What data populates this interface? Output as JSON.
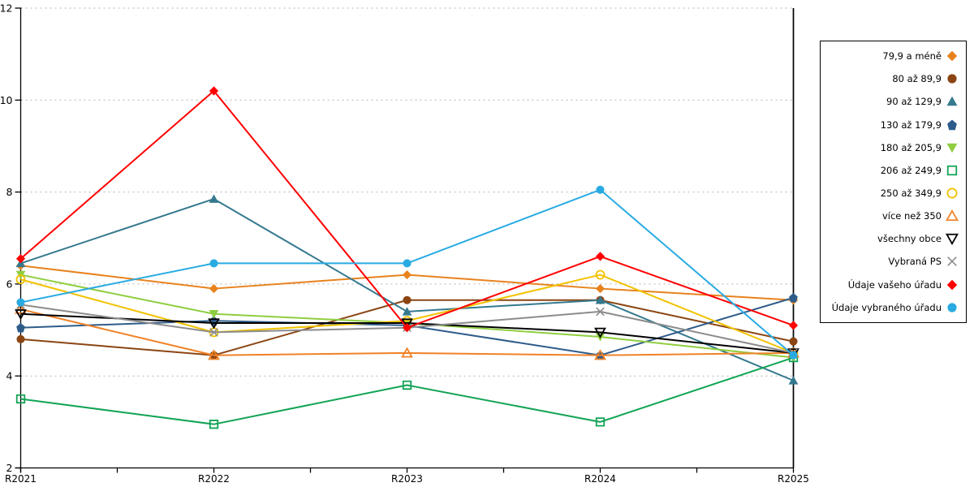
{
  "chart_data": {
    "type": "line",
    "title": "",
    "xlabel": "",
    "ylabel": "",
    "categories": [
      "R2021",
      "R2022",
      "R2023",
      "R2024",
      "R2025"
    ],
    "ylim": [
      2,
      12
    ],
    "yticks": [
      2,
      4,
      6,
      8,
      10,
      12
    ],
    "grid": "horizontal dotted gridlines",
    "legend_position": "right",
    "series": [
      {
        "name": "79,9 a méně",
        "marker": "diamond",
        "style": "filled",
        "color": "#E8821E",
        "values": [
          6.4,
          5.9,
          6.2,
          5.9,
          5.65
        ]
      },
      {
        "name": "80 až 89,9",
        "marker": "circle",
        "style": "filled",
        "color": "#8B4513",
        "values": [
          4.8,
          4.45,
          5.65,
          5.65,
          4.75
        ]
      },
      {
        "name": "90 až 129,9",
        "marker": "triangle-up",
        "style": "filled",
        "color": "#35798F",
        "values": [
          6.45,
          7.85,
          5.4,
          5.65,
          3.9
        ]
      },
      {
        "name": "130 až 179,9",
        "marker": "pentagon",
        "style": "filled",
        "color": "#2E5C8A",
        "values": [
          5.05,
          5.2,
          5.1,
          4.45,
          5.7
        ]
      },
      {
        "name": "180 až 205,9",
        "marker": "triangle-down",
        "style": "filled",
        "color": "#8FCE3F",
        "values": [
          6.2,
          5.35,
          5.15,
          4.85,
          4.4
        ]
      },
      {
        "name": "206 až 249,9",
        "marker": "square",
        "style": "open",
        "color": "#12A455",
        "values": [
          3.5,
          2.95,
          3.8,
          3.0,
          4.4
        ]
      },
      {
        "name": "250 až 349,9",
        "marker": "circle",
        "style": "open",
        "color": "#F2C200",
        "values": [
          6.1,
          4.95,
          5.2,
          6.2,
          4.5
        ]
      },
      {
        "name": "více než 350",
        "marker": "triangle-up",
        "style": "open",
        "color": "#F08228",
        "values": [
          5.45,
          4.45,
          4.5,
          4.45,
          4.5
        ]
      },
      {
        "name": "všechny obce",
        "marker": "triangle-down",
        "style": "open",
        "color": "#000000",
        "values": [
          5.35,
          5.15,
          5.15,
          4.95,
          4.5
        ]
      },
      {
        "name": "Vybraná PS",
        "marker": "x",
        "style": "open",
        "color": "#8C8C8C",
        "values": [
          5.55,
          4.95,
          5.05,
          5.4,
          4.5
        ]
      },
      {
        "name": "Údaje vašeho úřadu",
        "marker": "diamond",
        "style": "filled",
        "color": "#FF0000",
        "values": [
          6.55,
          10.2,
          5.05,
          6.6,
          5.1
        ]
      },
      {
        "name": "Údaje vybraného úřadu",
        "marker": "circle",
        "style": "filled",
        "color": "#29ABE2",
        "values": [
          5.6,
          6.45,
          6.45,
          8.05,
          4.45
        ]
      }
    ]
  },
  "axis_labels": {
    "y_tick_labels": [
      "2",
      "4",
      "6",
      "8",
      "10",
      "12"
    ],
    "x_tick_labels": [
      "R2021",
      "R2022",
      "R2023",
      "R2024",
      "R2025"
    ]
  }
}
